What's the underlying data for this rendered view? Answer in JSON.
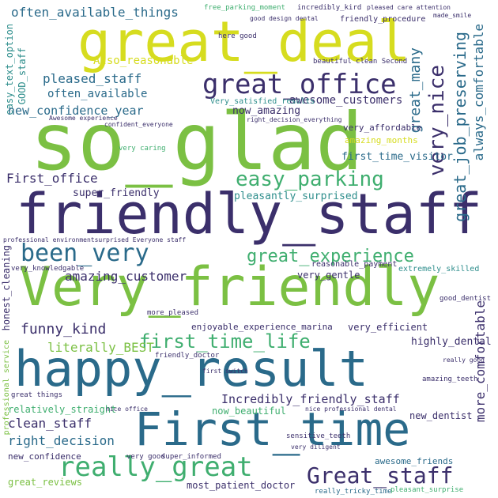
{
  "palette": {
    "navy": "#3b2f6b",
    "teal": "#2a6a8a",
    "sea": "#2e8e8c",
    "green": "#3fae6f",
    "lime": "#7bc043",
    "yellow": "#d6dc1f",
    "purple": "#46206b"
  },
  "words": {
    "so_glad": "so_glad",
    "friendly_staff": "friendly_staff",
    "very_friendly": "Very_friendly",
    "happy_result": "happy_result",
    "first_time": "First_time",
    "great_deal": "great_deal",
    "great_office": "great_office",
    "easy_parking": "easy_parking",
    "been_very": "been_very",
    "great_experience": "great_experience",
    "really_great": "really_great",
    "great_staff": "Great_staff",
    "very_nice": "very_nice",
    "great_job_preserving": "great_job_preserving",
    "great_many": "great_many",
    "always_comfortable": "always_comfortable",
    "often_available_things": "often_available_things",
    "first_time_life": "first_time_life",
    "pleased_staff": "pleased_staff",
    "often_available": "often_available",
    "new_confidence_year": "new_confidence_year",
    "awesome_customers": "awesome_customers",
    "also_reasonable": "Also_reasonable",
    "funny_kind": "funny_kind",
    "literally_best": "literally_BEST",
    "amazing_customer": "amazing_customer",
    "first_office": "First_office",
    "super_friendly": "super_friendly",
    "clean_staff": "clean_staff",
    "right_decision": "right_decision",
    "incredibly_friendly_staff": "Incredibly_friendly_staff",
    "more_comfortable": "more_comfortable",
    "highly_dental": "highly_dental",
    "very_affordable": "very_affordable",
    "first_time_visitor": "first_time_visitor",
    "pleasantly_surprised": "pleasantly_surprised",
    "now_amazing": "now_amazing",
    "amazing_months": "amazing_months",
    "enjoyable_experience_marina": "enjoyable_experience_marina",
    "very_gentle": "very_gentle",
    "very_efficient": "very_efficient",
    "now_beautiful": "now_beautiful",
    "new_dentist": "new_dentist",
    "relatively_straight": "relatively_straight",
    "great_reviews": "great_reviews",
    "most_patient_doctor": "most_patient_doctor",
    "awesome_friends": "awesome_friends",
    "new_confidence": "new_confidence",
    "reasonable_payment": "reasonable_payment",
    "extremely_skilled": "extremely_skilled",
    "honest_cleaning": "honest_cleaning",
    "very_knowledgable": "very_knowledgable",
    "friendly_procedure": "friendly_procedure",
    "free_parking_moment": "free_parking_moment",
    "incredibly_kind": "incredibly_kird",
    "good_design_dental": "good design dental",
    "pleased_care_attention": "pleased care attention",
    "made_smile": "made_smile",
    "here_good": "here good",
    "beautiful_clean_second": "beautiful clean Second",
    "very_satisfied_results": "Very_satisfied_results",
    "easy_text_option": "easy_text_option",
    "good_staff": "GOOD_staff",
    "great_things": "great things",
    "sensitive_teeth": "sensitive_teeth",
    "really_tricky_time": "really_tricky_time",
    "pleasant_surprise": "pleasant_surprise",
    "super_informed": "super_informed",
    "very_good": "very good",
    "professional_service": "professional service",
    "confident_everyone": "confident_everyone",
    "very_caring": "very caring",
    "amazing_teeth": "amazing_teeth",
    "more_pleased": "more_pleased",
    "friendly_doctor": "friendly_doctor",
    "first_switch": "first switch",
    "nice_office": "nice office",
    "very_diligent": "very diligent",
    "nice_professional_dental": "nice professional dental",
    "good_dentist": "good_dentist",
    "really_good": "really good",
    "professional_environment": "professional environmentsurprised Everyone staff",
    "awesome_experience": "Awesome experience",
    "right_decision_everything": "right_decision_everything"
  }
}
